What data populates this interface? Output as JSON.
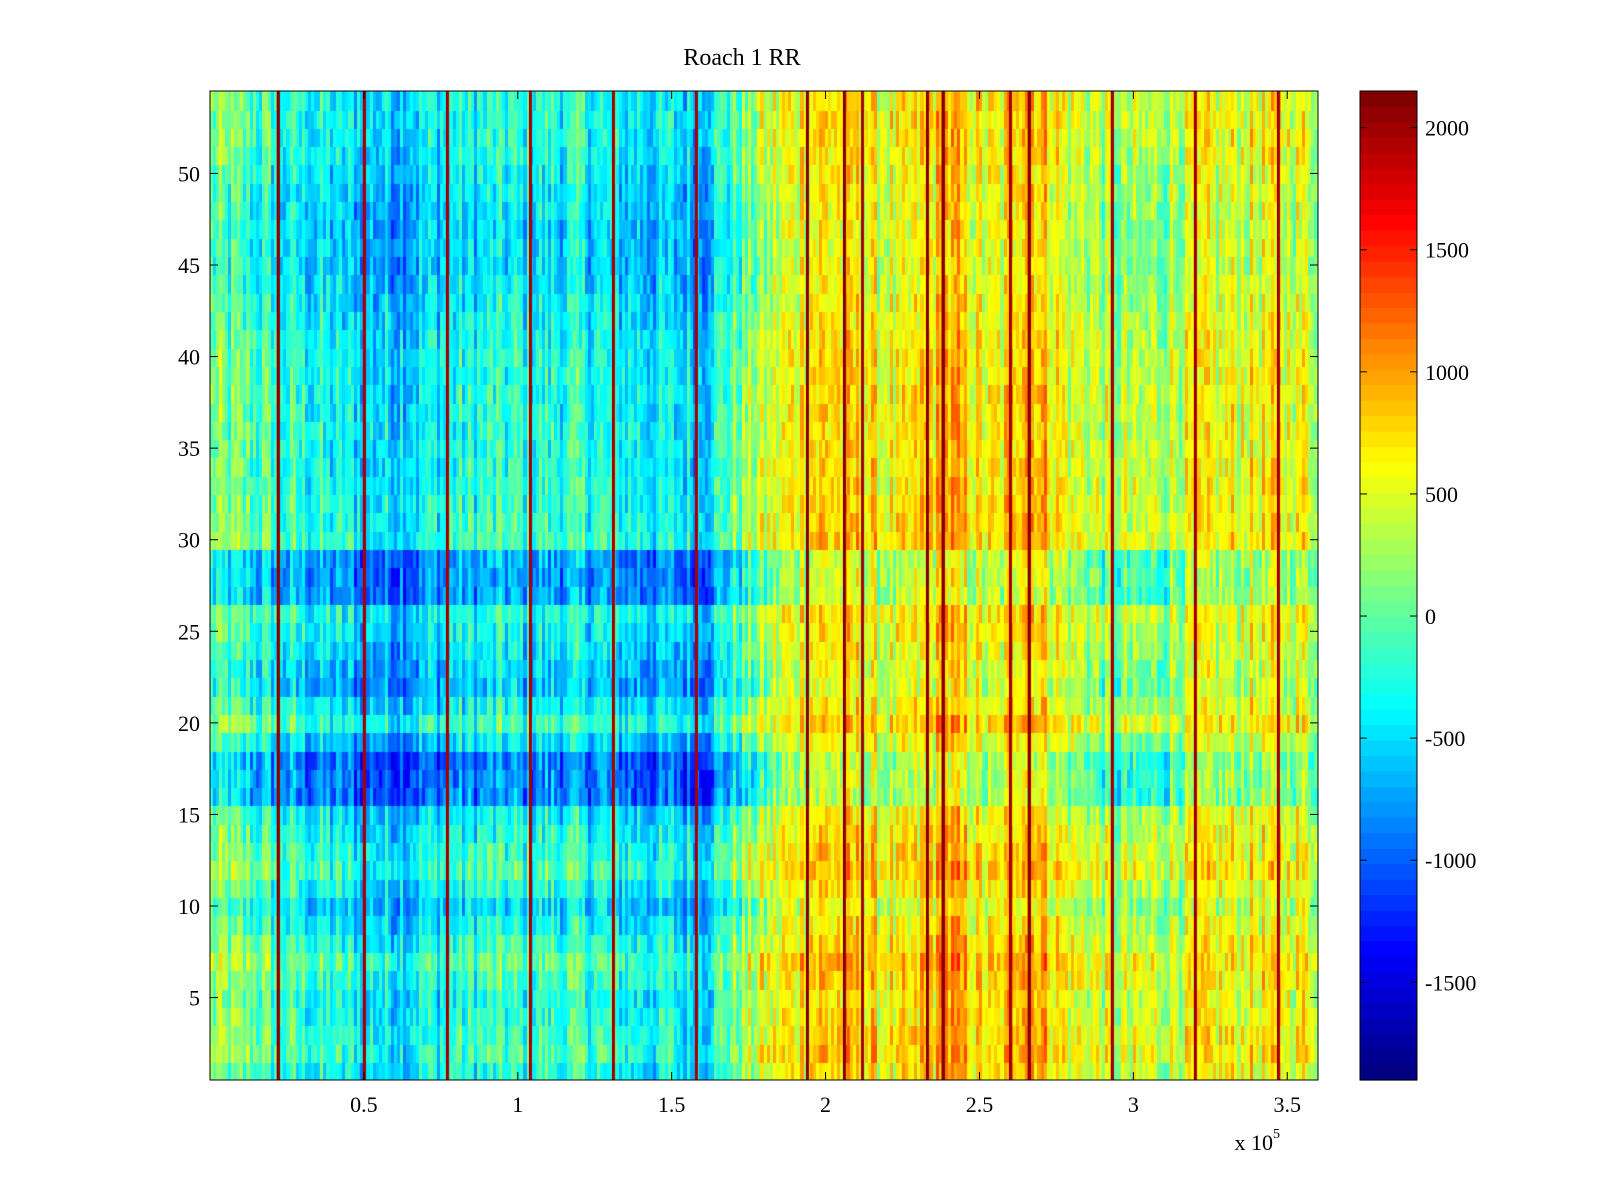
{
  "chart_data": {
    "type": "heatmap",
    "title": "Roach 1 RR",
    "xlabel": "",
    "ylabel": "",
    "x_multiplier_label": {
      "base": "x 10",
      "exponent": "5"
    },
    "x_range": [
      0,
      360000
    ],
    "y_range": [
      0.5,
      54.5
    ],
    "n_rows": 54,
    "color_range": [
      -1900,
      2150
    ],
    "colormap": "jet",
    "x_ticks": [
      {
        "value": 50000,
        "label": "0.5"
      },
      {
        "value": 100000,
        "label": "1"
      },
      {
        "value": 150000,
        "label": "1.5"
      },
      {
        "value": 200000,
        "label": "2"
      },
      {
        "value": 250000,
        "label": "2.5"
      },
      {
        "value": 300000,
        "label": "3"
      },
      {
        "value": 350000,
        "label": "3.5"
      }
    ],
    "y_ticks": [
      {
        "value": 5,
        "label": "5"
      },
      {
        "value": 10,
        "label": "10"
      },
      {
        "value": 15,
        "label": "15"
      },
      {
        "value": 20,
        "label": "20"
      },
      {
        "value": 25,
        "label": "25"
      },
      {
        "value": 30,
        "label": "30"
      },
      {
        "value": 35,
        "label": "35"
      },
      {
        "value": 40,
        "label": "40"
      },
      {
        "value": 45,
        "label": "45"
      },
      {
        "value": 50,
        "label": "50"
      }
    ],
    "colorbar_ticks": [
      {
        "value": 2000,
        "label": "2000"
      },
      {
        "value": 1500,
        "label": "1500"
      },
      {
        "value": 1000,
        "label": "1000"
      },
      {
        "value": 500,
        "label": "500"
      },
      {
        "value": 0,
        "label": "0"
      },
      {
        "value": -500,
        "label": "-500"
      },
      {
        "value": -1000,
        "label": "-1000"
      },
      {
        "value": -1500,
        "label": "-1500"
      }
    ],
    "column_profile": [
      {
        "x": 0,
        "v": 100
      },
      {
        "x": 20000,
        "v": -150
      },
      {
        "x": 40000,
        "v": -400
      },
      {
        "x": 60000,
        "v": -500
      },
      {
        "x": 80000,
        "v": -300
      },
      {
        "x": 100000,
        "v": -250
      },
      {
        "x": 120000,
        "v": -250
      },
      {
        "x": 140000,
        "v": -400
      },
      {
        "x": 150000,
        "v": -450
      },
      {
        "x": 160000,
        "v": -500
      },
      {
        "x": 170000,
        "v": 0
      },
      {
        "x": 180000,
        "v": 350
      },
      {
        "x": 195000,
        "v": 800
      },
      {
        "x": 210000,
        "v": 750
      },
      {
        "x": 225000,
        "v": 500
      },
      {
        "x": 240000,
        "v": 950
      },
      {
        "x": 255000,
        "v": 500
      },
      {
        "x": 265000,
        "v": 1150
      },
      {
        "x": 280000,
        "v": 500
      },
      {
        "x": 300000,
        "v": 250
      },
      {
        "x": 320000,
        "v": 500
      },
      {
        "x": 340000,
        "v": 600
      },
      {
        "x": 360000,
        "v": 550
      }
    ],
    "row_offsets": [
      {
        "row": 1,
        "v": 0
      },
      {
        "row": 2,
        "v": 150
      },
      {
        "row": 5,
        "v": 0
      },
      {
        "row": 7,
        "v": 200
      },
      {
        "row": 10,
        "v": -200
      },
      {
        "row": 12,
        "v": 150
      },
      {
        "row": 15,
        "v": -100
      },
      {
        "row": 16,
        "v": -500
      },
      {
        "row": 18,
        "v": -500
      },
      {
        "row": 20,
        "v": 100
      },
      {
        "row": 22,
        "v": -300
      },
      {
        "row": 24,
        "v": -150
      },
      {
        "row": 26,
        "v": 0
      },
      {
        "row": 27,
        "v": -400
      },
      {
        "row": 29,
        "v": -400
      },
      {
        "row": 30,
        "v": 100
      },
      {
        "row": 34,
        "v": 0
      },
      {
        "row": 40,
        "v": 0
      },
      {
        "row": 45,
        "v": -200
      },
      {
        "row": 49,
        "v": -150
      },
      {
        "row": 52,
        "v": 0
      },
      {
        "row": 54,
        "v": 0
      }
    ],
    "artifact_columns": [
      {
        "x": 22000,
        "v": 2100
      },
      {
        "x": 50000,
        "v": 2000
      },
      {
        "x": 77000,
        "v": 2000
      },
      {
        "x": 104000,
        "v": 2000
      },
      {
        "x": 131000,
        "v": 2000
      },
      {
        "x": 158000,
        "v": 2000
      },
      {
        "x": 194000,
        "v": 2100
      },
      {
        "x": 206000,
        "v": 2100
      },
      {
        "x": 212000,
        "v": 2000
      },
      {
        "x": 233000,
        "v": 2100
      },
      {
        "x": 238000,
        "v": 2100
      },
      {
        "x": 260000,
        "v": 2000
      },
      {
        "x": 266000,
        "v": 2100
      },
      {
        "x": 293000,
        "v": 2000
      },
      {
        "x": 320000,
        "v": 2000
      },
      {
        "x": 347000,
        "v": 2000
      }
    ]
  }
}
